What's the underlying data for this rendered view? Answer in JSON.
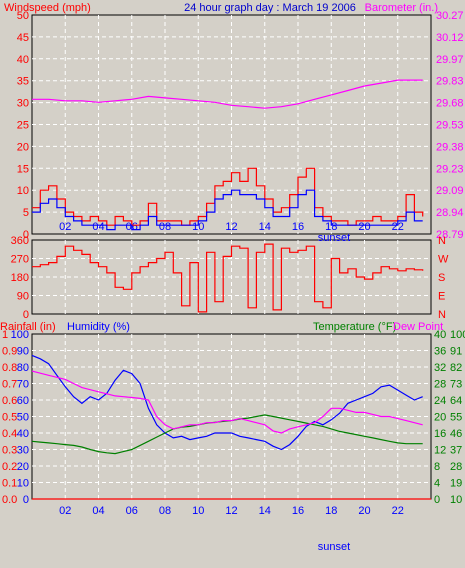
{
  "title": "24 hour graph day : March 19 2006",
  "colors": {
    "background": "#d4d0c8",
    "plot_bg": "#d4d0c8",
    "grid": "#ffffff",
    "wind_speed": "#ff0000",
    "wind_avg": "#0000ff",
    "barometer": "#ff00ff",
    "wind_dir": "#ff0000",
    "rainfall": "#ff0000",
    "humidity": "#0000ff",
    "temperature": "#008000",
    "dew_point": "#ff00ff",
    "time_axis": "#0000ff"
  },
  "x_ticks": [
    "02",
    "04",
    "06",
    "08",
    "10",
    "12",
    "14",
    "16",
    "18",
    "20",
    "22"
  ],
  "sunset_label": "sunset",
  "chart_data": [
    {
      "type": "line",
      "id": "wind-barometer",
      "left_axis_label": "Windspeed (mph)",
      "right_axis_label": "Barometer (in.)",
      "left_ticks": [
        "50",
        "45",
        "40",
        "35",
        "30",
        "25",
        "20",
        "15",
        "10",
        "5",
        "0"
      ],
      "right_ticks": [
        "30.27",
        "30.12",
        "29.97",
        "29.83",
        "29.68",
        "29.53",
        "29.38",
        "29.23",
        "29.09",
        "28.94",
        "28.79"
      ],
      "ylim": [
        0,
        50
      ],
      "barometer_ylim": [
        28.79,
        30.27
      ],
      "xlim": [
        0,
        24
      ],
      "series": [
        {
          "key": "wind_speed",
          "x": [
            0,
            0.5,
            1,
            1.5,
            2,
            2.5,
            3,
            3.5,
            4,
            4.5,
            5,
            5.5,
            6,
            6.5,
            7,
            7.5,
            8,
            8.5,
            9,
            9.5,
            10,
            10.5,
            11,
            11.5,
            12,
            12.5,
            13,
            13.5,
            14,
            14.5,
            15,
            15.5,
            16,
            16.5,
            17,
            17.5,
            18,
            18.5,
            19,
            19.5,
            20,
            20.5,
            21,
            21.5,
            22,
            22.5,
            23,
            23.5
          ],
          "values": [
            6,
            10,
            11,
            8,
            5,
            4,
            3,
            4,
            3,
            2,
            4,
            3,
            2,
            3,
            7,
            3,
            3,
            3,
            2,
            3,
            4,
            7,
            11,
            12,
            14,
            12,
            15,
            11,
            8,
            5,
            6,
            9,
            13,
            15,
            6,
            4,
            3,
            3,
            2,
            3,
            3,
            4,
            3,
            3,
            4,
            9,
            5,
            4
          ]
        },
        {
          "key": "wind_avg",
          "x": [
            0,
            0.5,
            1,
            1.5,
            2,
            2.5,
            3,
            3.5,
            4,
            4.5,
            5,
            5.5,
            6,
            6.5,
            7,
            7.5,
            8,
            8.5,
            9,
            9.5,
            10,
            10.5,
            11,
            11.5,
            12,
            12.5,
            13,
            13.5,
            14,
            14.5,
            15,
            15.5,
            16,
            16.5,
            17,
            17.5,
            18,
            18.5,
            19,
            19.5,
            20,
            20.5,
            21,
            21.5,
            22,
            22.5,
            23,
            23.5
          ],
          "values": [
            5,
            7,
            8,
            6,
            4,
            3,
            2,
            2,
            2,
            1,
            2,
            2,
            1,
            2,
            4,
            2,
            2,
            2,
            2,
            2,
            3,
            5,
            8,
            9,
            10,
            9,
            9,
            8,
            6,
            4,
            4,
            6,
            9,
            10,
            4,
            3,
            2,
            2,
            2,
            2,
            2,
            2,
            2,
            2,
            3,
            5,
            3,
            3
          ]
        },
        {
          "key": "barometer",
          "x": [
            0,
            1,
            2,
            3,
            4,
            5,
            6,
            7,
            8,
            9,
            10,
            11,
            12,
            13,
            14,
            15,
            16,
            17,
            18,
            19,
            20,
            21,
            22,
            23,
            23.5
          ],
          "values": [
            29.7,
            29.7,
            29.69,
            29.69,
            29.68,
            29.69,
            29.7,
            29.72,
            29.71,
            29.7,
            29.69,
            29.68,
            29.66,
            29.65,
            29.64,
            29.65,
            29.67,
            29.7,
            29.73,
            29.76,
            29.79,
            29.81,
            29.83,
            29.83,
            29.83
          ]
        }
      ]
    },
    {
      "type": "line",
      "id": "wind-direction",
      "left_ticks": [
        "360",
        "270",
        "180",
        "90",
        "0"
      ],
      "right_ticks": [
        "N",
        "W",
        "S",
        "E",
        "N"
      ],
      "ylim": [
        0,
        360
      ],
      "xlim": [
        0,
        24
      ],
      "series": [
        {
          "key": "wind_dir",
          "x": [
            0,
            0.5,
            1,
            1.5,
            2,
            2.5,
            3,
            3.5,
            4,
            4.5,
            5,
            5.5,
            6,
            6.5,
            7,
            7.5,
            8,
            8.5,
            9,
            9.5,
            10,
            10.5,
            11,
            11.5,
            12,
            12.5,
            13,
            13.5,
            14,
            14.5,
            15,
            15.5,
            16,
            16.5,
            17,
            17.5,
            18,
            18.5,
            19,
            19.5,
            20,
            20.5,
            21,
            21.5,
            22,
            22.5,
            23,
            23.5
          ],
          "values": [
            230,
            240,
            250,
            280,
            330,
            310,
            290,
            250,
            230,
            200,
            130,
            120,
            200,
            230,
            250,
            270,
            300,
            200,
            40,
            250,
            10,
            300,
            60,
            280,
            330,
            320,
            30,
            300,
            340,
            20,
            320,
            300,
            310,
            330,
            60,
            30,
            270,
            200,
            220,
            180,
            170,
            200,
            230,
            220,
            210,
            220,
            215,
            210
          ]
        }
      ]
    },
    {
      "type": "line",
      "id": "humidity-temp",
      "left_axis_label": "Rainfall (in)",
      "left_axis_label2": "Humidity (%)",
      "right_axis_label": "Temperature (°F)",
      "right_axis_label2": "Dew Point",
      "rain_ticks": [
        "1",
        "0.9",
        "0.8",
        "0.7",
        "0.6",
        "0.5",
        "0.4",
        "0.3",
        "0.2",
        "0.1",
        "0.0"
      ],
      "humidity_ticks": [
        "100",
        "90",
        "80",
        "70",
        "60",
        "50",
        "40",
        "30",
        "20",
        "10",
        "0"
      ],
      "temp_ticks": [
        "40",
        "36",
        "32",
        "28",
        "24",
        "20",
        "16",
        "12",
        "8",
        "4",
        "0"
      ],
      "dew_ticks": [
        "100",
        "91",
        "82",
        "73",
        "64",
        "55",
        "46",
        "37",
        "28",
        "19",
        "10"
      ],
      "ylim": [
        0,
        100
      ],
      "xlim": [
        0,
        24
      ],
      "series": [
        {
          "key": "humidity",
          "x": [
            0,
            0.5,
            1,
            1.5,
            2,
            2.5,
            3,
            3.5,
            4,
            4.5,
            5,
            5.5,
            6,
            6.5,
            7,
            7.5,
            8,
            8.5,
            9,
            9.5,
            10,
            10.5,
            11,
            11.5,
            12,
            12.5,
            13,
            13.5,
            14,
            14.5,
            15,
            15.5,
            16,
            16.5,
            17,
            17.5,
            18,
            18.5,
            19,
            19.5,
            20,
            20.5,
            21,
            21.5,
            22,
            22.5,
            23,
            23.5
          ],
          "values": [
            87,
            85,
            82,
            75,
            68,
            62,
            58,
            62,
            60,
            64,
            72,
            78,
            76,
            70,
            55,
            45,
            40,
            37,
            38,
            36,
            37,
            38,
            40,
            40,
            40,
            38,
            37,
            36,
            35,
            32,
            30,
            33,
            38,
            44,
            47,
            45,
            48,
            52,
            58,
            60,
            62,
            64,
            68,
            69,
            66,
            63,
            60,
            62
          ]
        },
        {
          "key": "temperature",
          "x": [
            0,
            0.5,
            1,
            1.5,
            2,
            2.5,
            3,
            3.5,
            4,
            4.5,
            5,
            5.5,
            6,
            6.5,
            7,
            7.5,
            8,
            8.5,
            9,
            9.5,
            10,
            10.5,
            11,
            11.5,
            12,
            12.5,
            13,
            13.5,
            14,
            14.5,
            15,
            15.5,
            16,
            16.5,
            17,
            17.5,
            18,
            18.5,
            19,
            19.5,
            20,
            20.5,
            21,
            21.5,
            22,
            22.5,
            23,
            23.5
          ],
          "values": [
            14,
            13.8,
            13.6,
            13.4,
            13.2,
            13,
            12.6,
            12,
            11.5,
            11.2,
            11,
            11.5,
            12,
            13,
            14,
            15,
            16,
            17,
            17.4,
            17.6,
            18,
            18.4,
            18.6,
            18.8,
            19,
            19.4,
            19.6,
            20,
            20.4,
            20,
            19.6,
            19.2,
            18.8,
            18.4,
            18,
            17.6,
            17,
            16.4,
            16,
            15.6,
            15.2,
            14.8,
            14.4,
            14,
            13.6,
            13.4,
            13.4,
            13.4
          ]
        },
        {
          "key": "dew_point",
          "x": [
            0,
            0.5,
            1,
            1.5,
            2,
            2.5,
            3,
            3.5,
            4,
            4.5,
            5,
            5.5,
            6,
            6.5,
            7,
            7.5,
            8,
            8.5,
            9,
            9.5,
            10,
            10.5,
            11,
            11.5,
            12,
            12.5,
            13,
            13.5,
            14,
            14.5,
            15,
            15.5,
            16,
            16.5,
            17,
            17.5,
            18,
            18.5,
            19,
            19.5,
            20,
            20.5,
            21,
            21.5,
            22,
            22.5,
            23,
            23.5
          ],
          "values": [
            31,
            30.5,
            30,
            29.5,
            29,
            28,
            27,
            26.5,
            26,
            25.5,
            25,
            24.8,
            24.6,
            24.4,
            24,
            20,
            18,
            17,
            17.5,
            18,
            18,
            18.5,
            18.5,
            19,
            19,
            19.5,
            19,
            18.5,
            18,
            16.5,
            16,
            17,
            17.5,
            18,
            18.5,
            20,
            22,
            22,
            21.5,
            21,
            21,
            20.5,
            20,
            20,
            19.5,
            19,
            18.5,
            18
          ]
        },
        {
          "key": "rainfall",
          "x": [
            0,
            24
          ],
          "values": [
            0,
            0
          ]
        }
      ]
    }
  ]
}
